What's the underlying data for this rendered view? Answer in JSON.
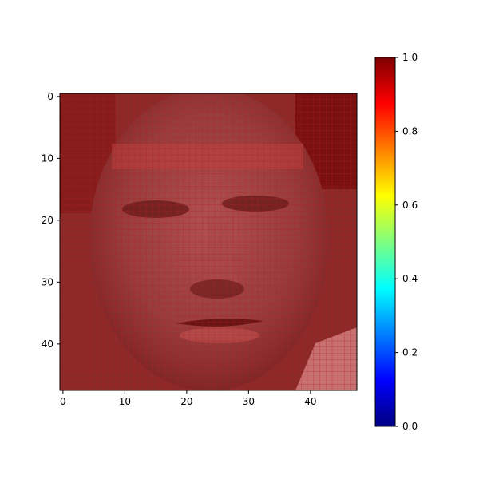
{
  "chart_data": {
    "type": "heatmap",
    "title": "",
    "xlabel": "",
    "ylabel": "",
    "image_size": [
      48,
      48
    ],
    "xlim": [
      -0.5,
      47.5
    ],
    "ylim": [
      47.5,
      -0.5
    ],
    "x_ticks": [
      0,
      10,
      20,
      30,
      40
    ],
    "y_ticks": [
      0,
      10,
      20,
      30,
      40
    ],
    "x_tick_labels": [
      "0",
      "10",
      "20",
      "30",
      "40"
    ],
    "y_tick_labels": [
      "0",
      "10",
      "20",
      "30",
      "40"
    ],
    "grid": true,
    "colormap": "jet",
    "overlay_color": "#b02020",
    "colorbar": {
      "range": [
        0.0,
        1.0
      ],
      "ticks": [
        0.0,
        0.2,
        0.4,
        0.6,
        0.8,
        1.0
      ],
      "tick_labels": [
        "0.0",
        "0.2",
        "0.4",
        "0.6",
        "0.8",
        "1.0"
      ],
      "stops": [
        "#00007f",
        "#0000ff",
        "#007fff",
        "#00ffff",
        "#7fff7f",
        "#ffff00",
        "#ff7f00",
        "#ff0000",
        "#7f0000"
      ]
    }
  }
}
